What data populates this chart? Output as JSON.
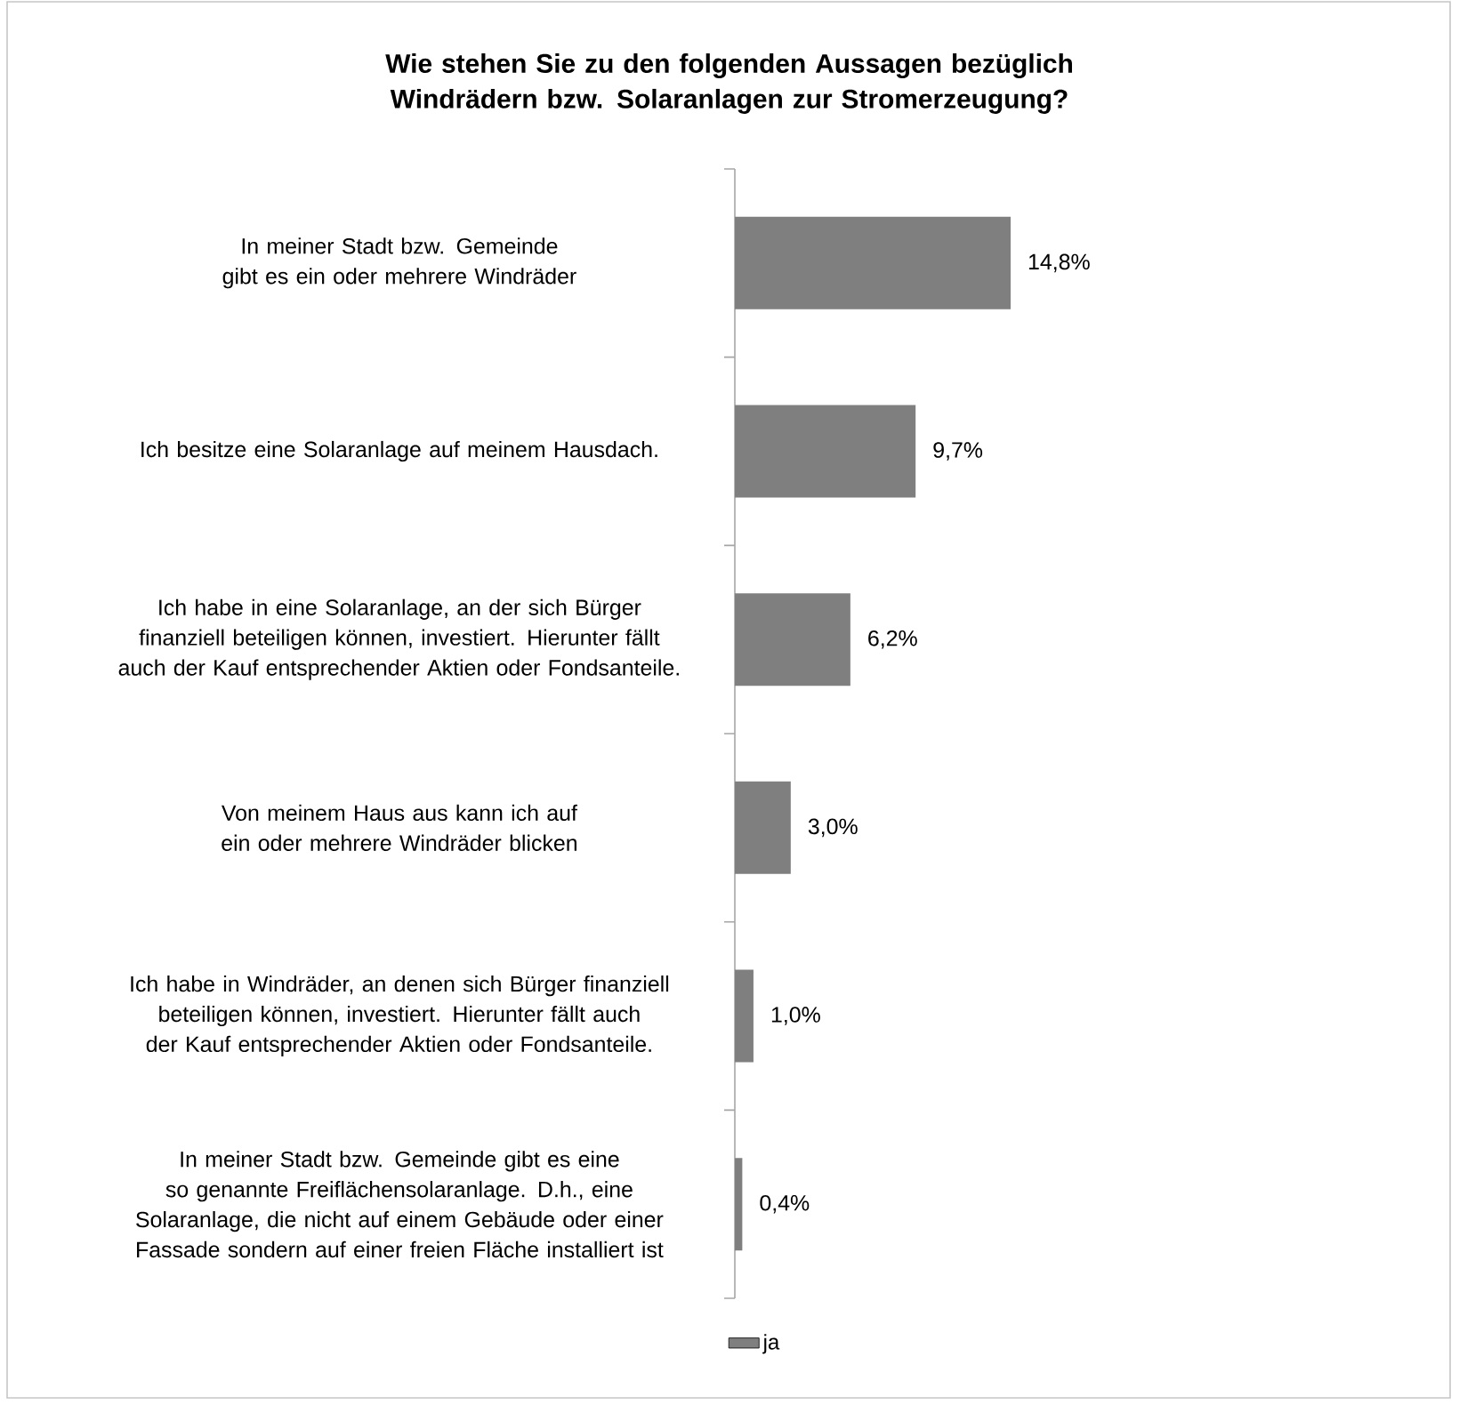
{
  "chart_data": {
    "type": "bar",
    "orientation": "horizontal",
    "title": "Wie stehen Sie zu den folgenden Aussagen bezüglich Windrädern bzw. Solaranlagen zur Stromerzeugung?",
    "categories": [
      "In meiner Stadt bzw. Gemeinde gibt es ein oder mehrere Windräder",
      "Ich besitze eine Solaranlage auf meinem Hausdach.",
      "Ich habe in eine Solaranlage, an der sich Bürger finanziell beteiligen können, investiert. Hierunter fällt auch der Kauf entsprechender Aktien oder Fondsanteile.",
      "Von meinem Haus aus kann ich auf ein oder mehrere Windräder blicken",
      "Ich habe in Windräder, an denen sich Bürger finanziell beteiligen können, investiert. Hierunter fällt auch der Kauf entsprechender Aktien oder Fondsanteile.",
      "In meiner Stadt bzw. Gemeinde gibt es eine so genannte Freiflächensolaranlage. D.h., eine Solaranlage, die nicht auf einem Gebäude oder einer Fassade sondern auf einer freien Fläche installiert ist"
    ],
    "series": [
      {
        "name": "ja",
        "color": "#7f7f7f",
        "values": [
          14.8,
          9.7,
          6.2,
          3.0,
          1.0,
          0.4
        ],
        "value_labels": [
          "14,8%",
          "9,7%",
          "6,2%",
          "3,0%",
          "1,0%",
          "0,4%"
        ]
      }
    ],
    "legend": "bottom"
  }
}
